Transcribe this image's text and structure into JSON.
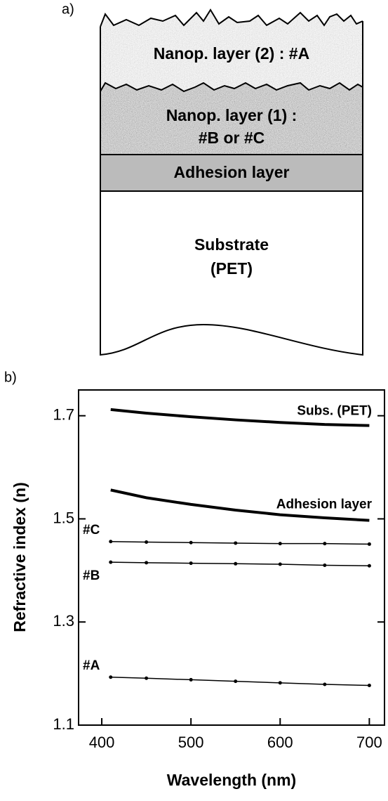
{
  "diagram": {
    "panel_label": "a)",
    "layer_2": "Nanop. layer (2) : #A",
    "layer_1": [
      "Nanop. layer (1) :",
      "#B or #C"
    ],
    "adhesion": "Adhesion layer",
    "substrate": [
      "Substrate",
      "(PET)"
    ]
  },
  "chart_data": {
    "type": "line",
    "panel_label": "b)",
    "x_label": "Wavelength (nm)",
    "y_label": "Refractive index (n)",
    "x": [
      410,
      450,
      500,
      550,
      600,
      650,
      700
    ],
    "series": [
      {
        "name": "Subs. (PET)",
        "color": "#000000",
        "markers": false,
        "values": [
          1.712,
          1.705,
          1.698,
          1.692,
          1.687,
          1.683,
          1.681
        ]
      },
      {
        "name": "Adhesion layer",
        "color": "#000000",
        "markers": false,
        "values": [
          1.556,
          1.541,
          1.528,
          1.517,
          1.508,
          1.502,
          1.497
        ]
      },
      {
        "name": "#C",
        "color": "#000000",
        "markers": true,
        "values": [
          1.456,
          1.455,
          1.454,
          1.453,
          1.452,
          1.452,
          1.451
        ]
      },
      {
        "name": "#B",
        "color": "#000000",
        "markers": true,
        "values": [
          1.416,
          1.415,
          1.414,
          1.413,
          1.412,
          1.41,
          1.409
        ]
      },
      {
        "name": "#A",
        "color": "#000000",
        "markers": true,
        "values": [
          1.193,
          1.191,
          1.188,
          1.185,
          1.182,
          1.179,
          1.177
        ]
      }
    ],
    "xlim": [
      374,
      717
    ],
    "ylim": [
      1.1,
      1.75
    ],
    "xticks": [
      400,
      500,
      600,
      700
    ],
    "yticks": [
      1.1,
      1.3,
      1.5,
      1.7
    ]
  }
}
